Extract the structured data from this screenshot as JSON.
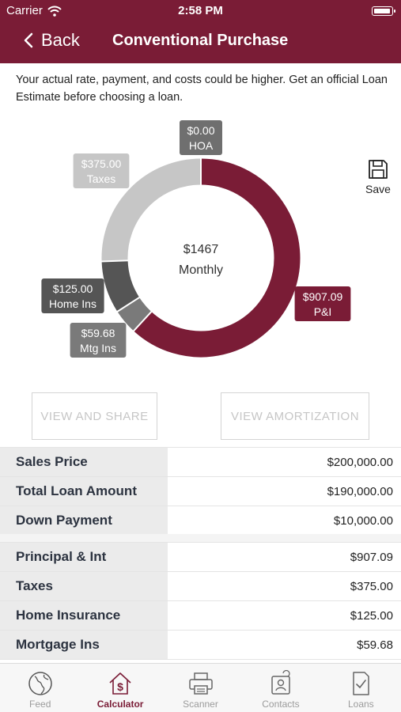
{
  "status": {
    "carrier": "Carrier",
    "time": "2:58 PM"
  },
  "nav": {
    "back_label": "Back",
    "title": "Conventional Purchase"
  },
  "disclaimer": "Your actual rate, payment, and costs could be higher. Get an official Loan Estimate before choosing a loan.",
  "save_label": "Save",
  "chart_data": {
    "type": "pie",
    "style": "donut",
    "center_value": "$1467",
    "center_label": "Monthly",
    "slices": [
      {
        "name": "P&I",
        "value": 907.09,
        "label": "$907.09",
        "color": "#7a1c36"
      },
      {
        "name": "Mtg Ins",
        "value": 59.68,
        "label": "$59.68",
        "color": "#7a7a7a"
      },
      {
        "name": "Home Ins",
        "value": 125.0,
        "label": "$125.00",
        "color": "#555555"
      },
      {
        "name": "Taxes",
        "value": 375.0,
        "label": "$375.00",
        "color": "#c6c6c6"
      },
      {
        "name": "HOA",
        "value": 0.0,
        "label": "$0.00",
        "color": "#6f6f6f"
      }
    ]
  },
  "buttons": {
    "share": "VIEW AND SHARE",
    "amortization": "VIEW AMORTIZATION"
  },
  "loan_summary": [
    {
      "label": "Sales Price",
      "value": "$200,000.00"
    },
    {
      "label": "Total Loan Amount",
      "value": "$190,000.00"
    },
    {
      "label": "Down Payment",
      "value": "$10,000.00"
    }
  ],
  "payment_breakdown": [
    {
      "label": "Principal & Int",
      "value": "$907.09"
    },
    {
      "label": "Taxes",
      "value": "$375.00"
    },
    {
      "label": "Home Insurance",
      "value": "$125.00"
    },
    {
      "label": "Mortgage Ins",
      "value": "$59.68"
    }
  ],
  "tabs": [
    {
      "label": "Feed",
      "icon": "globe-icon",
      "active": false
    },
    {
      "label": "Calculator",
      "icon": "house-dollar-icon",
      "active": true
    },
    {
      "label": "Scanner",
      "icon": "printer-icon",
      "active": false
    },
    {
      "label": "Contacts",
      "icon": "contact-card-icon",
      "active": false
    },
    {
      "label": "Loans",
      "icon": "document-check-icon",
      "active": false
    }
  ],
  "colors": {
    "brand": "#7a1c36",
    "label_bg": "#ebebeb"
  }
}
